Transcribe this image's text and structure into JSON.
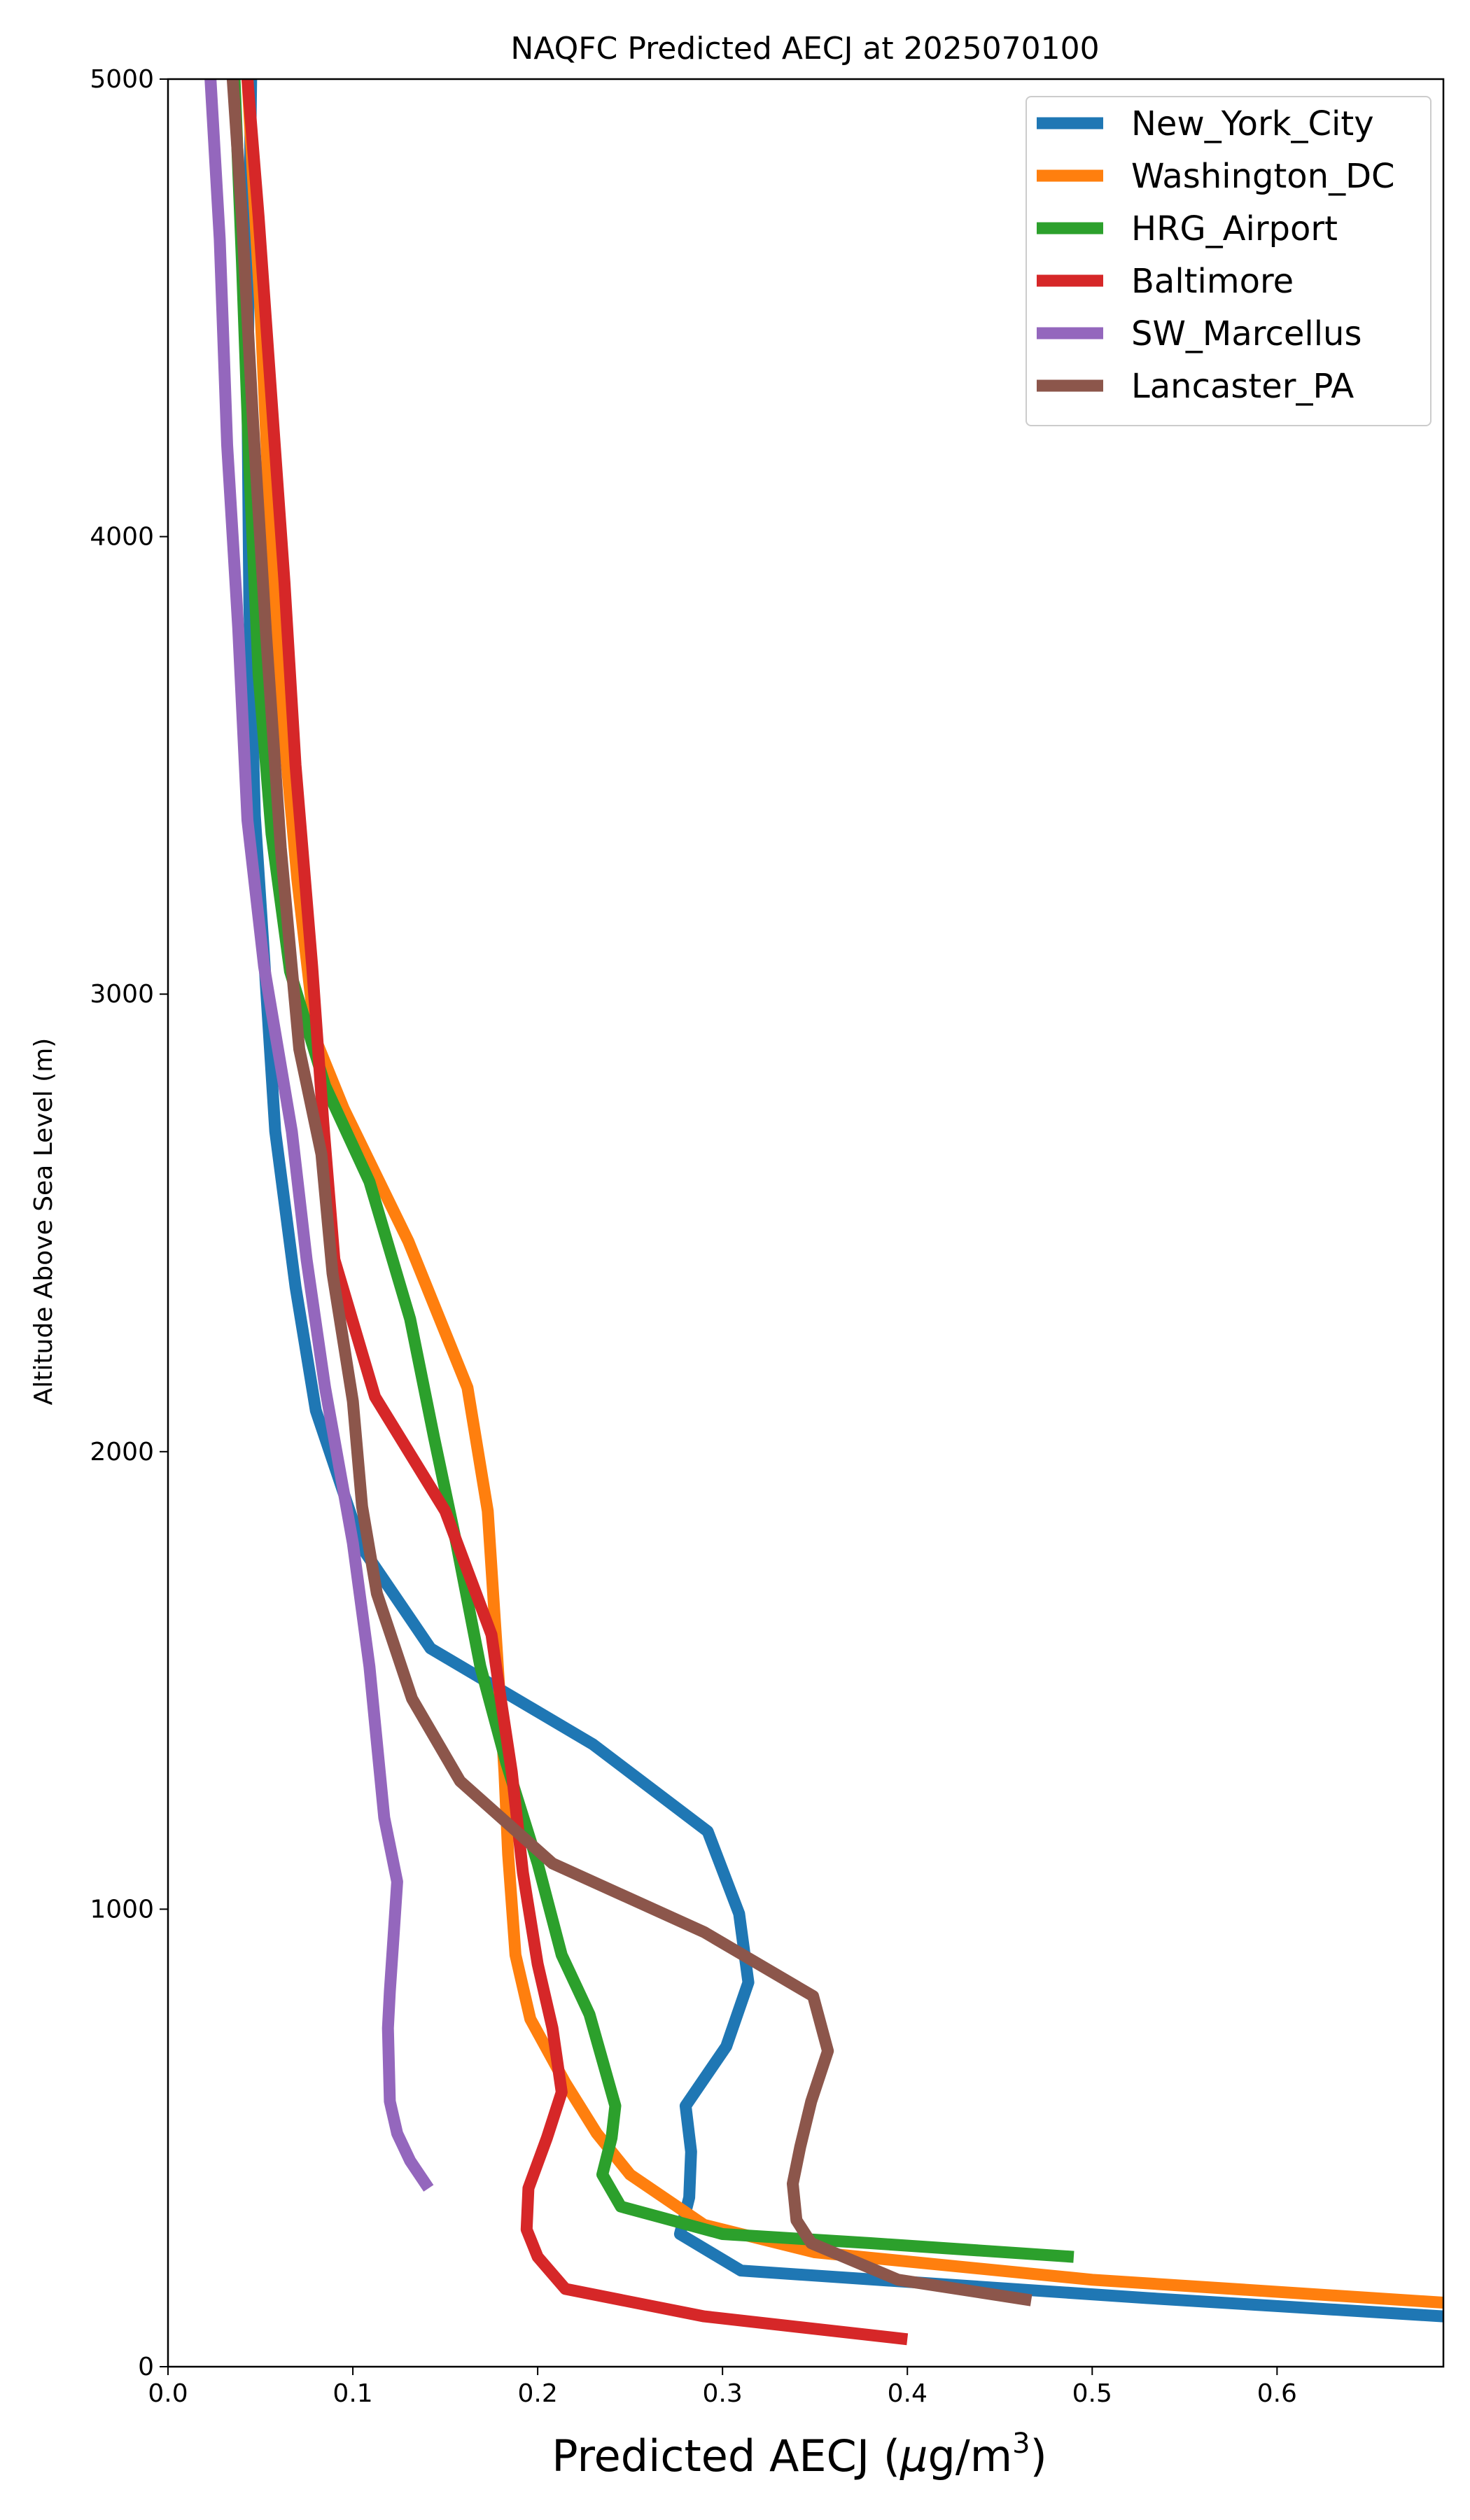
{
  "chart_data": {
    "type": "line",
    "title": "NAQFC Predicted AECJ at 2025070100",
    "xlabel_prefix": "Predicted AECJ (",
    "xlabel_mu": "μ",
    "xlabel_unit": "g/m",
    "xlabel_sup": "3",
    "xlabel_suffix": ")",
    "ylabel": "Altitude Above Sea Level (m)",
    "xlim": [
      0.0,
      0.69
    ],
    "ylim": [
      0,
      5000
    ],
    "xticks": [
      "0.0",
      "0.1",
      "0.2",
      "0.3",
      "0.4",
      "0.5",
      "0.6"
    ],
    "yticks": [
      "0",
      "1000",
      "2000",
      "3000",
      "4000",
      "5000"
    ],
    "grid": false,
    "legend_position": "upper-right",
    "series": [
      {
        "name": "New_York_City",
        "color": "#1f77b4",
        "points": [
          [
            0.69,
            110
          ],
          [
            0.53,
            150
          ],
          [
            0.31,
            210
          ],
          [
            0.277,
            290
          ],
          [
            0.282,
            370
          ],
          [
            0.283,
            470
          ],
          [
            0.28,
            570
          ],
          [
            0.302,
            700
          ],
          [
            0.314,
            840
          ],
          [
            0.309,
            990
          ],
          [
            0.292,
            1170
          ],
          [
            0.23,
            1360
          ],
          [
            0.142,
            1570
          ],
          [
            0.105,
            1790
          ],
          [
            0.08,
            2090
          ],
          [
            0.069,
            2360
          ],
          [
            0.058,
            2700
          ],
          [
            0.052,
            3080
          ],
          [
            0.047,
            3390
          ],
          [
            0.044,
            3850
          ],
          [
            0.043,
            4300
          ],
          [
            0.044,
            4700
          ],
          [
            0.045,
            5000
          ]
        ]
      },
      {
        "name": "Washington_DC",
        "color": "#ff7f0e",
        "points": [
          [
            0.69,
            140
          ],
          [
            0.5,
            190
          ],
          [
            0.35,
            250
          ],
          [
            0.29,
            310
          ],
          [
            0.25,
            420
          ],
          [
            0.232,
            510
          ],
          [
            0.215,
            620
          ],
          [
            0.196,
            760
          ],
          [
            0.188,
            900
          ],
          [
            0.184,
            1120
          ],
          [
            0.182,
            1300
          ],
          [
            0.178,
            1560
          ],
          [
            0.173,
            1870
          ],
          [
            0.162,
            2140
          ],
          [
            0.13,
            2460
          ],
          [
            0.095,
            2750
          ],
          [
            0.08,
            2900
          ],
          [
            0.07,
            3250
          ],
          [
            0.061,
            3650
          ],
          [
            0.055,
            4050
          ],
          [
            0.05,
            4500
          ],
          [
            0.043,
            5000
          ]
        ]
      },
      {
        "name": "HRG_Airport",
        "color": "#2ca02c",
        "points": [
          [
            0.49,
            240
          ],
          [
            0.38,
            270
          ],
          [
            0.3,
            290
          ],
          [
            0.245,
            350
          ],
          [
            0.235,
            420
          ],
          [
            0.24,
            500
          ],
          [
            0.242,
            570
          ],
          [
            0.228,
            770
          ],
          [
            0.213,
            900
          ],
          [
            0.2,
            1100
          ],
          [
            0.183,
            1320
          ],
          [
            0.169,
            1530
          ],
          [
            0.156,
            1800
          ],
          [
            0.144,
            2030
          ],
          [
            0.131,
            2290
          ],
          [
            0.109,
            2590
          ],
          [
            0.085,
            2800
          ],
          [
            0.066,
            3050
          ],
          [
            0.056,
            3350
          ],
          [
            0.049,
            3700
          ],
          [
            0.044,
            4150
          ],
          [
            0.04,
            4600
          ],
          [
            0.036,
            5000
          ]
        ]
      },
      {
        "name": "Baltimore",
        "color": "#d62728",
        "points": [
          [
            0.4,
            60
          ],
          [
            0.29,
            110
          ],
          [
            0.215,
            170
          ],
          [
            0.2,
            240
          ],
          [
            0.194,
            300
          ],
          [
            0.195,
            390
          ],
          [
            0.205,
            500
          ],
          [
            0.213,
            600
          ],
          [
            0.208,
            740
          ],
          [
            0.2,
            880
          ],
          [
            0.192,
            1080
          ],
          [
            0.186,
            1300
          ],
          [
            0.18,
            1460
          ],
          [
            0.175,
            1600
          ],
          [
            0.15,
            1870
          ],
          [
            0.112,
            2120
          ],
          [
            0.09,
            2420
          ],
          [
            0.084,
            2720
          ],
          [
            0.078,
            3060
          ],
          [
            0.069,
            3500
          ],
          [
            0.063,
            3900
          ],
          [
            0.056,
            4300
          ],
          [
            0.049,
            4700
          ],
          [
            0.043,
            5000
          ]
        ]
      },
      {
        "name": "SW_Marcellus",
        "color": "#9467bd",
        "points": [
          [
            0.141,
            390
          ],
          [
            0.131,
            450
          ],
          [
            0.124,
            510
          ],
          [
            0.12,
            580
          ],
          [
            0.119,
            740
          ],
          [
            0.12,
            820
          ],
          [
            0.122,
            940
          ],
          [
            0.124,
            1060
          ],
          [
            0.117,
            1200
          ],
          [
            0.109,
            1530
          ],
          [
            0.1,
            1800
          ],
          [
            0.085,
            2140
          ],
          [
            0.075,
            2420
          ],
          [
            0.067,
            2700
          ],
          [
            0.052,
            3060
          ],
          [
            0.043,
            3380
          ],
          [
            0.038,
            3800
          ],
          [
            0.032,
            4200
          ],
          [
            0.028,
            4650
          ],
          [
            0.023,
            5000
          ]
        ]
      },
      {
        "name": "Lancaster_PA",
        "color": "#8c564b",
        "points": [
          [
            0.467,
            145
          ],
          [
            0.395,
            190
          ],
          [
            0.348,
            270
          ],
          [
            0.34,
            320
          ],
          [
            0.338,
            400
          ],
          [
            0.342,
            480
          ],
          [
            0.348,
            580
          ],
          [
            0.357,
            690
          ],
          [
            0.349,
            810
          ],
          [
            0.29,
            950
          ],
          [
            0.208,
            1100
          ],
          [
            0.158,
            1280
          ],
          [
            0.132,
            1460
          ],
          [
            0.113,
            1690
          ],
          [
            0.105,
            1880
          ],
          [
            0.1,
            2110
          ],
          [
            0.089,
            2390
          ],
          [
            0.083,
            2650
          ],
          [
            0.071,
            2880
          ],
          [
            0.061,
            3320
          ],
          [
            0.053,
            3790
          ],
          [
            0.046,
            4250
          ],
          [
            0.04,
            4700
          ],
          [
            0.035,
            5000
          ]
        ]
      }
    ]
  }
}
